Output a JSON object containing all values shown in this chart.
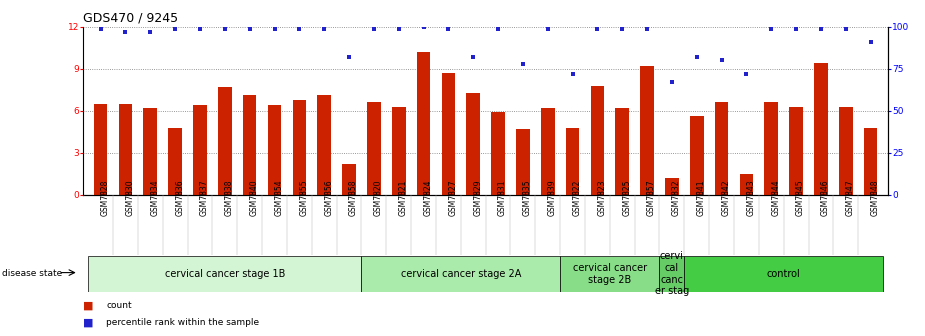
{
  "title": "GDS470 / 9245",
  "samples": [
    "GSM7828",
    "GSM7830",
    "GSM7834",
    "GSM7836",
    "GSM7837",
    "GSM7838",
    "GSM7840",
    "GSM7854",
    "GSM7855",
    "GSM7856",
    "GSM7858",
    "GSM7820",
    "GSM7821",
    "GSM7824",
    "GSM7827",
    "GSM7829",
    "GSM7831",
    "GSM7835",
    "GSM7839",
    "GSM7822",
    "GSM7823",
    "GSM7825",
    "GSM7857",
    "GSM7832",
    "GSM7841",
    "GSM7842",
    "GSM7843",
    "GSM7844",
    "GSM7845",
    "GSM7846",
    "GSM7847",
    "GSM7848"
  ],
  "counts": [
    6.5,
    6.5,
    6.2,
    4.8,
    6.4,
    7.7,
    7.1,
    6.4,
    6.8,
    7.1,
    2.2,
    6.6,
    6.3,
    10.2,
    8.7,
    7.3,
    5.9,
    4.7,
    6.2,
    4.8,
    7.8,
    6.2,
    9.2,
    1.2,
    5.6,
    6.6,
    1.5,
    6.6,
    6.3,
    9.4,
    6.3,
    4.8
  ],
  "percentile": [
    99,
    97,
    97,
    99,
    99,
    99,
    99,
    99,
    99,
    99,
    82,
    99,
    99,
    100,
    99,
    82,
    99,
    78,
    99,
    72,
    99,
    99,
    99,
    67,
    82,
    80,
    72,
    99,
    99,
    99,
    99,
    91
  ],
  "groups": [
    {
      "label": "cervical cancer stage 1B",
      "start": 0,
      "end": 10,
      "color": "#d4f5d4"
    },
    {
      "label": "cervical cancer stage 2A",
      "start": 11,
      "end": 18,
      "color": "#aaeaaa"
    },
    {
      "label": "cervical cancer\nstage 2B",
      "start": 19,
      "end": 22,
      "color": "#88dd88"
    },
    {
      "label": "cervi\ncal\ncanc\ner stag",
      "start": 23,
      "end": 23,
      "color": "#66cc66"
    },
    {
      "label": "control",
      "start": 24,
      "end": 31,
      "color": "#44cc44"
    }
  ],
  "bar_color": "#cc2200",
  "dot_color": "#2222cc",
  "ylim_left": [
    0,
    12
  ],
  "ylim_right": [
    0,
    100
  ],
  "yticks_left": [
    0,
    3,
    6,
    9,
    12
  ],
  "yticks_right": [
    0,
    25,
    50,
    75,
    100
  ],
  "bar_width": 0.55,
  "grid_color": "#777777",
  "title_fontsize": 9,
  "tick_fontsize": 6.5,
  "sample_fontsize": 5.5,
  "group_fontsize": 7,
  "legend_fontsize": 7
}
